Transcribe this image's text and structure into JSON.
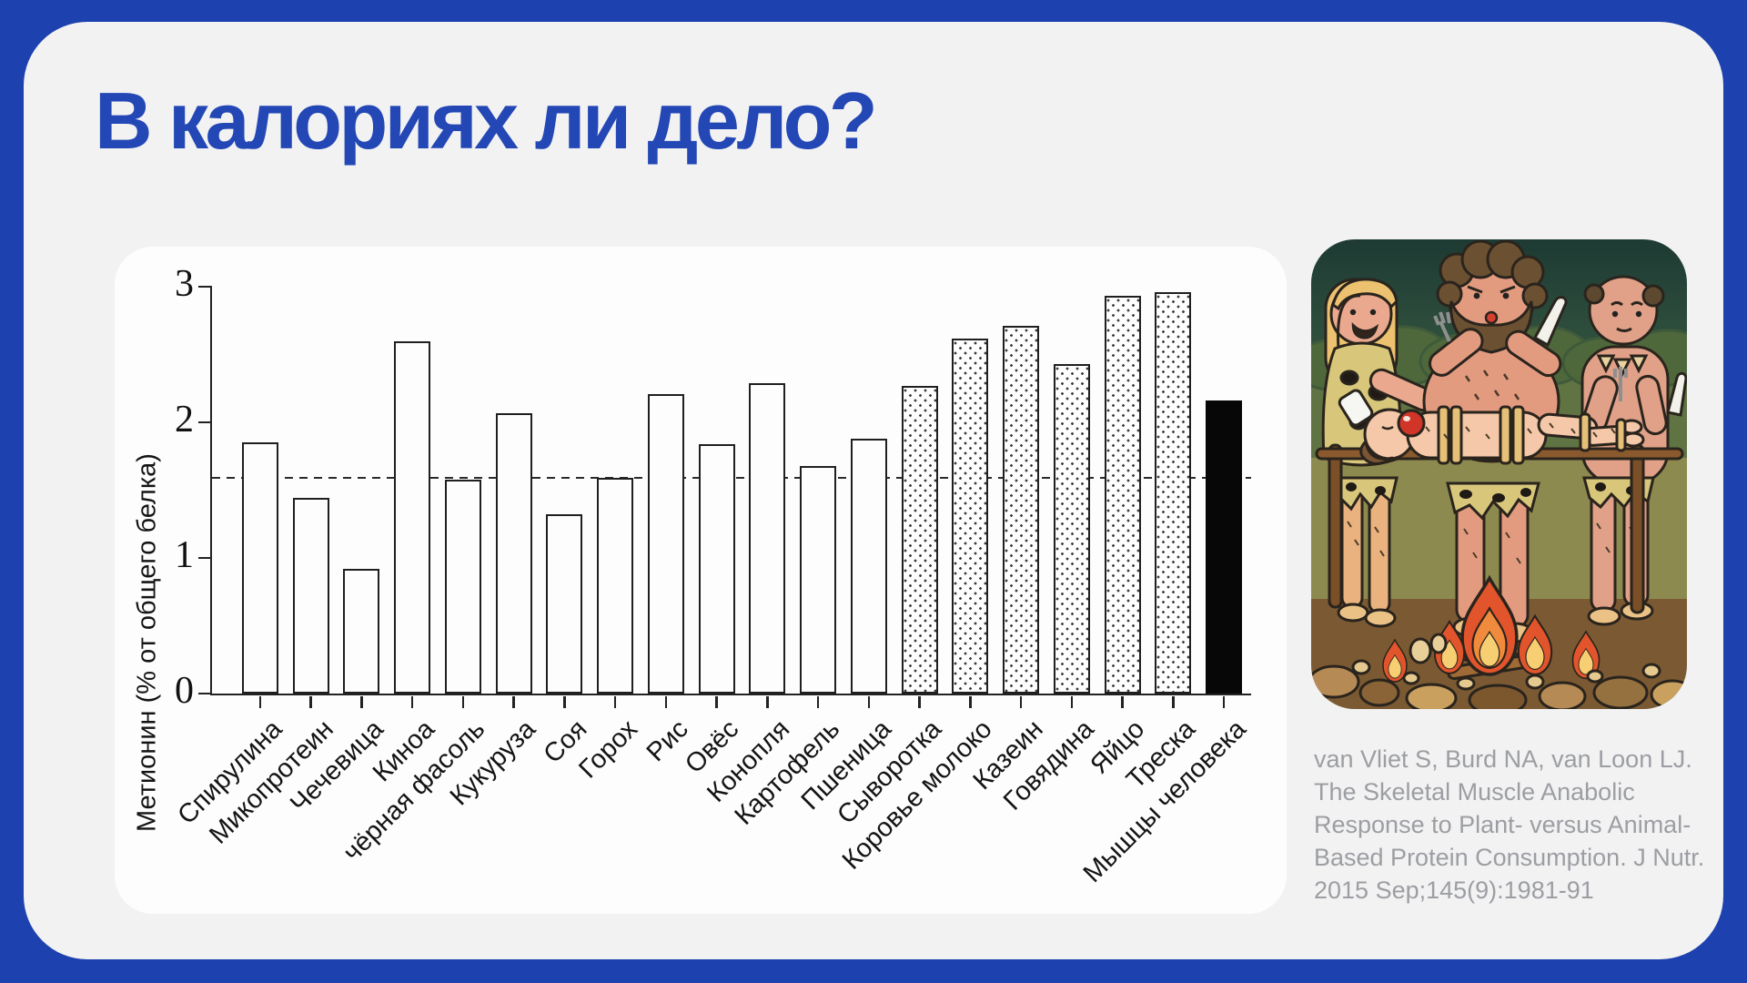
{
  "page": {
    "background": "#1d41ae",
    "card_background": "#f2f2f3"
  },
  "title": {
    "text": "В калориях ли дело?",
    "color": "#2347b5"
  },
  "chart_data": {
    "type": "bar",
    "title": "",
    "xlabel": "",
    "ylabel": "Метионин (% от общего белка)",
    "ylim": [
      0,
      3
    ],
    "yticks": [
      "0",
      "1",
      "2",
      "3"
    ],
    "grid": false,
    "legend_position": "none",
    "reference_line": 1.59,
    "categories": [
      "Спирулина",
      "Микопротеин",
      "Чечевица",
      "Киноа",
      "чёрная фасоль",
      "Кукуруза",
      "Соя",
      "Горох",
      "Рис",
      "Овёс",
      "Конопля",
      "Картофель",
      "Пшеница",
      "Сыворотка",
      "Коровье молоко",
      "Казеин",
      "Говядина",
      "Яйцо",
      "Треска",
      "Мышцы человека"
    ],
    "values": [
      1.85,
      1.44,
      0.92,
      2.6,
      1.58,
      2.07,
      1.32,
      1.59,
      2.21,
      1.84,
      2.29,
      1.68,
      1.88,
      2.27,
      2.62,
      2.71,
      2.43,
      2.93,
      2.96,
      2.16
    ],
    "bar_styles": [
      "plain",
      "plain",
      "plain",
      "plain",
      "plain",
      "plain",
      "plain",
      "plain",
      "plain",
      "plain",
      "plain",
      "plain",
      "plain",
      "dotted",
      "dotted",
      "dotted",
      "dotted",
      "dotted",
      "dotted",
      "solid-black"
    ]
  },
  "citation": {
    "text": "van Vliet S, Burd NA, van Loon LJ. The Skeletal Muscle Anabolic Response to Plant- versus Animal-Based Protein Consumption. J Nutr. 2015 Sep;145(9):1981-91"
  },
  "illustration": {
    "description": "Cartoon: three cavemen roast a tied-up human with an apple in his mouth on a spit over a campfire"
  }
}
